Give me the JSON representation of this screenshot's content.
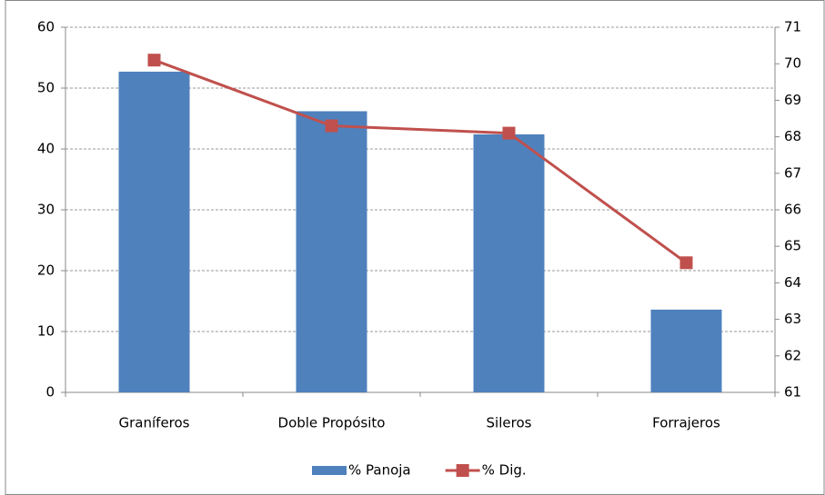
{
  "chart_data": {
    "type": "bar",
    "categories": [
      "Graníferos",
      "Doble Propósito",
      "Sileros",
      "Forrajeros"
    ],
    "series": [
      {
        "name": "% Panoja",
        "type": "bar",
        "color": "#4f81bd",
        "values": [
          52.7,
          46.2,
          42.4,
          13.6
        ]
      },
      {
        "name": "% Dig.",
        "type": "line",
        "axis": "y2",
        "color": "#c0504d",
        "values": [
          70.1,
          68.3,
          68.1,
          64.55
        ]
      }
    ],
    "ylim": [
      0,
      60
    ],
    "yticks": [
      0,
      10,
      20,
      30,
      40,
      50,
      60
    ],
    "y2lim": [
      61,
      71
    ],
    "y2ticks": [
      61,
      62,
      63,
      64,
      65,
      66,
      67,
      68,
      69,
      70,
      71
    ],
    "grid": true,
    "legend": "bottom"
  }
}
